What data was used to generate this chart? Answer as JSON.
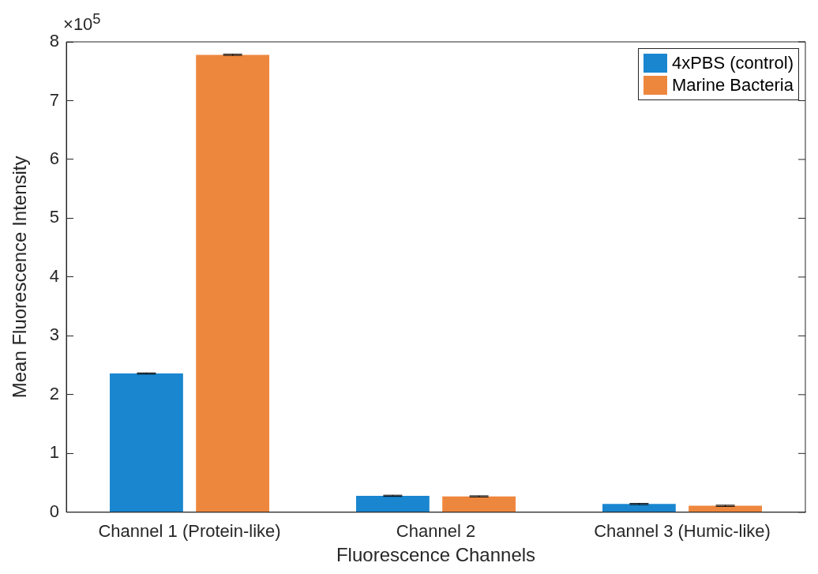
{
  "chart_data": {
    "type": "bar",
    "xlabel": "Fluorescence Channels",
    "ylabel": "Mean Fluorescence Intensity",
    "categories": [
      "Channel 1 (Protein-like)",
      "Channel 2",
      "Channel 3 (Humic-like)"
    ],
    "series": [
      {
        "name": "4xPBS (control)",
        "color": "#1a86cf",
        "values": [
          2.36,
          0.28,
          0.14
        ],
        "errors": [
          0.01,
          0.01,
          0.01
        ]
      },
      {
        "name": "Marine Bacteria",
        "color": "#ee873e",
        "values": [
          7.78,
          0.27,
          0.11
        ],
        "errors": [
          0.01,
          0.01,
          0.01
        ]
      }
    ],
    "ylim": [
      0,
      8
    ],
    "yticks": [
      0,
      1,
      2,
      3,
      4,
      5,
      6,
      7,
      8
    ],
    "grid": false,
    "legend": "top right",
    "annotations": [
      "×10$^{5}$"
    ]
  }
}
